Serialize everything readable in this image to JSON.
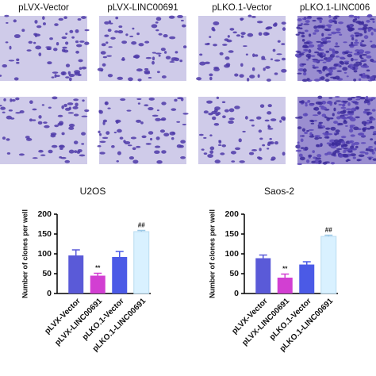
{
  "panel_labels": [
    "pLVX-Vector",
    "pLVX-LINC00691",
    "pLKO.1-Vector",
    "pLKO.1-LINC006"
  ],
  "chart_data": [
    {
      "type": "bar",
      "title": "U2OS",
      "y_label": "Number of clones per well",
      "categories": [
        "pLVX-Vector",
        "pLVX-LINC00691",
        "pLKO.1-Vector",
        "pLKO.1-LINC00691"
      ],
      "values": [
        96,
        45,
        92,
        156
      ],
      "errors": [
        14,
        6,
        14,
        3
      ],
      "annotations": [
        null,
        "**",
        null,
        "##"
      ],
      "colors": [
        "#5a5ad8",
        "#d23fd2",
        "#4b5ae6",
        "#d9f1ff"
      ],
      "ylim": [
        0,
        200
      ],
      "yticks": [
        0,
        50,
        100,
        150,
        200
      ]
    },
    {
      "type": "bar",
      "title": "Saos-2",
      "y_label": "Number of clones per well",
      "categories": [
        "pLVX-Vector",
        "pLVX-LINC00691",
        "pLKO.1-Vector",
        "pLKO.1-LINC00691"
      ],
      "values": [
        89,
        40,
        73,
        144
      ],
      "errors": [
        8,
        9,
        7,
        3
      ],
      "annotations": [
        null,
        "**",
        null,
        "##"
      ],
      "colors": [
        "#5a5ad8",
        "#d23fd2",
        "#4b5ae6",
        "#d9f1ff"
      ],
      "ylim": [
        0,
        200
      ],
      "yticks": [
        0,
        50,
        100,
        150,
        200
      ]
    }
  ]
}
